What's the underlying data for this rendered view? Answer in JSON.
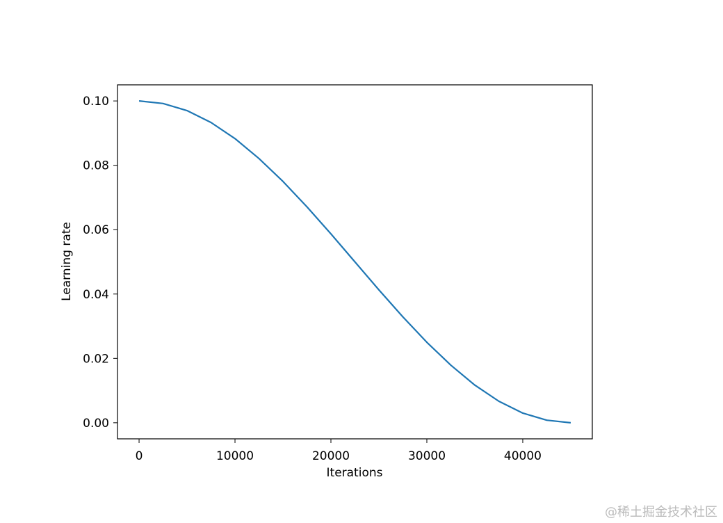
{
  "chart_data": {
    "type": "line",
    "xlabel": "Iterations",
    "ylabel": "Learning rate",
    "x": [
      0,
      2500,
      5000,
      7500,
      10000,
      12500,
      15000,
      17500,
      20000,
      22500,
      25000,
      27500,
      30000,
      32500,
      35000,
      37500,
      40000,
      42500,
      45000
    ],
    "series": [
      {
        "color": "#1f77b4",
        "values": [
          0.1,
          0.0992,
          0.097,
          0.0933,
          0.0883,
          0.0821,
          0.075,
          0.0671,
          0.0587,
          0.05,
          0.0413,
          0.0329,
          0.025,
          0.0179,
          0.0117,
          0.0067,
          0.003,
          0.0008,
          0
        ]
      }
    ],
    "xlim": [
      -2250,
      47250
    ],
    "ylim": [
      -0.005,
      0.105
    ],
    "xticks": [
      0,
      10000,
      20000,
      30000,
      40000
    ],
    "yticks": [
      {
        "value": 0,
        "label": "0.00"
      },
      {
        "value": 0.02,
        "label": "0.02"
      },
      {
        "value": 0.04,
        "label": "0.04"
      },
      {
        "value": 0.06,
        "label": "0.06"
      },
      {
        "value": 0.08,
        "label": "0.08"
      },
      {
        "value": 0.1,
        "label": "0.10"
      }
    ],
    "grid": false
  },
  "watermark": "@稀土掘金技术社区"
}
